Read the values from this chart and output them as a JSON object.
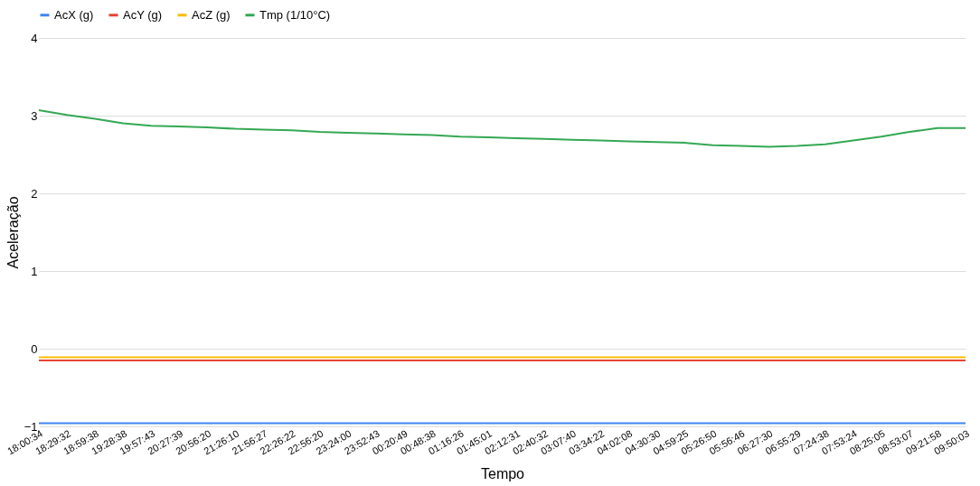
{
  "chart_data": {
    "type": "line",
    "xlabel": "Tempo",
    "ylabel": "Aceleração",
    "categories": [
      "18:00:34",
      "18:29:32",
      "18:59:38",
      "19:28:38",
      "19:57:43",
      "20:27:39",
      "20:56:20",
      "21:26:10",
      "21:56:27",
      "22:26:22",
      "22:56:20",
      "23:24:00",
      "23:52:43",
      "00:20:49",
      "00:48:38",
      "01:16:26",
      "01:45:01",
      "02:12:31",
      "02:40:32",
      "03:07:40",
      "03:34:22",
      "04:02:08",
      "04:30:30",
      "04:59:25",
      "05:26:50",
      "05:56:46",
      "06:27:30",
      "06:55:29",
      "07:24:38",
      "07:53:24",
      "08:25:05",
      "08:53:07",
      "09:21:58",
      "09:50:03"
    ],
    "series": [
      {
        "name": "AcX (g)",
        "color": "#4285f4",
        "values": [
          -0.96,
          -0.96,
          -0.96,
          -0.96,
          -0.96,
          -0.96,
          -0.96,
          -0.96,
          -0.96,
          -0.96,
          -0.96,
          -0.96,
          -0.96,
          -0.96,
          -0.96,
          -0.96,
          -0.96,
          -0.96,
          -0.96,
          -0.96,
          -0.96,
          -0.96,
          -0.96,
          -0.96,
          -0.96,
          -0.96,
          -0.96,
          -0.96,
          -0.96,
          -0.96,
          -0.96,
          -0.96,
          -0.96,
          -0.96
        ]
      },
      {
        "name": "AcY (g)",
        "color": "#ea4335",
        "values": [
          -0.15,
          -0.15,
          -0.15,
          -0.15,
          -0.15,
          -0.15,
          -0.15,
          -0.15,
          -0.15,
          -0.15,
          -0.15,
          -0.15,
          -0.15,
          -0.15,
          -0.15,
          -0.15,
          -0.15,
          -0.15,
          -0.15,
          -0.15,
          -0.15,
          -0.15,
          -0.15,
          -0.15,
          -0.15,
          -0.15,
          -0.15,
          -0.15,
          -0.15,
          -0.15,
          -0.15,
          -0.15,
          -0.15,
          -0.15
        ]
      },
      {
        "name": "AcZ (g)",
        "color": "#fbbc04",
        "values": [
          -0.11,
          -0.11,
          -0.11,
          -0.11,
          -0.11,
          -0.11,
          -0.11,
          -0.11,
          -0.11,
          -0.11,
          -0.11,
          -0.11,
          -0.11,
          -0.11,
          -0.11,
          -0.11,
          -0.11,
          -0.11,
          -0.11,
          -0.11,
          -0.11,
          -0.11,
          -0.11,
          -0.11,
          -0.11,
          -0.11,
          -0.11,
          -0.11,
          -0.11,
          -0.11,
          -0.11,
          -0.11,
          -0.11,
          -0.11
        ]
      },
      {
        "name": "Tmp (1/10°C)",
        "color": "#34a853",
        "values": [
          3.07,
          3.01,
          2.96,
          2.9,
          2.87,
          2.86,
          2.85,
          2.83,
          2.82,
          2.81,
          2.79,
          2.78,
          2.77,
          2.76,
          2.75,
          2.73,
          2.72,
          2.71,
          2.7,
          2.69,
          2.68,
          2.67,
          2.66,
          2.65,
          2.62,
          2.61,
          2.6,
          2.61,
          2.63,
          2.68,
          2.73,
          2.79,
          2.84,
          2.84
        ]
      }
    ],
    "ylim": [
      -1,
      4
    ],
    "yticks": [
      -1,
      0,
      1,
      2,
      3,
      4
    ],
    "grid": "y",
    "legend": "top",
    "marker": "none",
    "line_style": "solid"
  }
}
